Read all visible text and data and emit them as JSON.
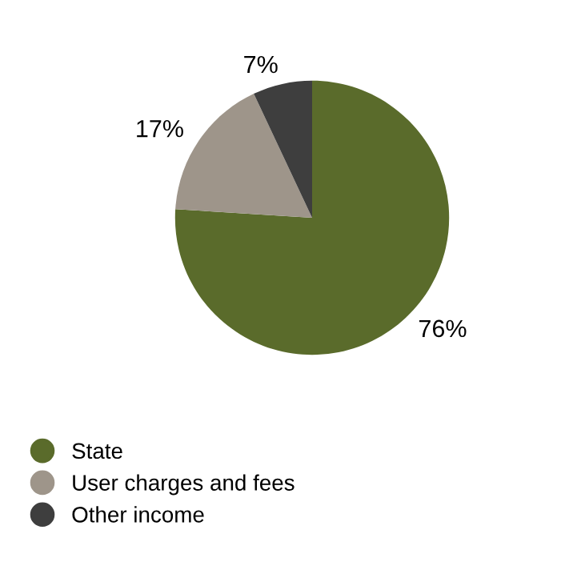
{
  "chart_data": {
    "type": "pie",
    "categories": [
      "State",
      "User charges and fees",
      "Other income"
    ],
    "values": [
      76,
      17,
      7
    ],
    "colors": [
      "#5a6b2b",
      "#9e958a",
      "#3e3e3e"
    ],
    "value_labels": [
      "76%",
      "17%",
      "7%"
    ],
    "legend": "bottom left"
  }
}
